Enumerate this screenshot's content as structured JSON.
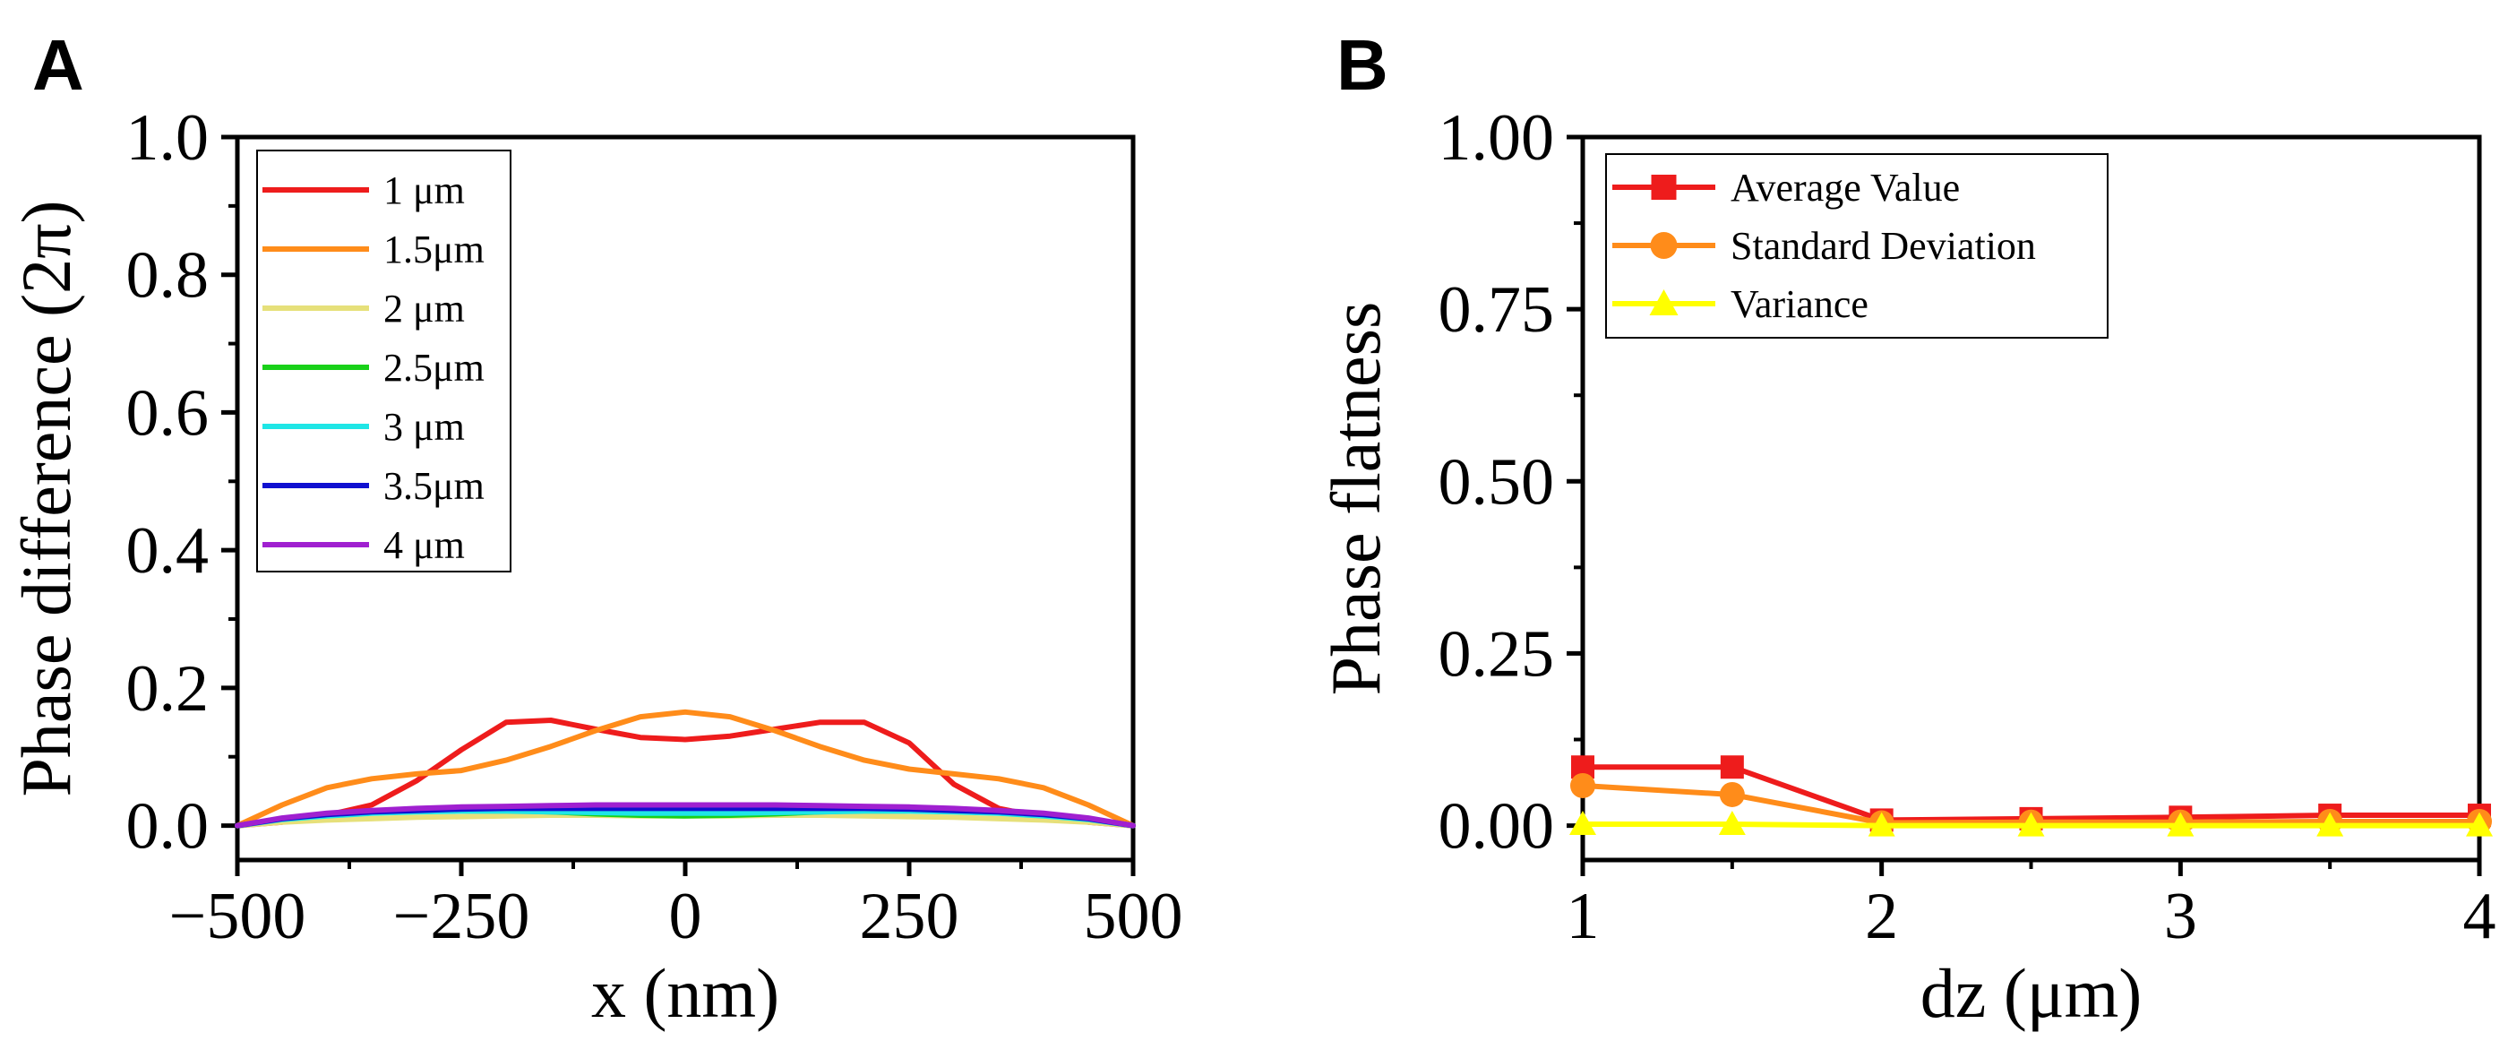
{
  "figure": {
    "panels": [
      {
        "letter": "A"
      },
      {
        "letter": "B"
      }
    ]
  },
  "chart_data": [
    {
      "type": "line",
      "panel": "A",
      "title": "",
      "xlabel": "x (nm)",
      "ylabel": "Phase difference (2π)",
      "xlim": [
        -500,
        500
      ],
      "ylim": [
        -0.05,
        1.0
      ],
      "xticks": [
        -500,
        -250,
        0,
        250,
        500
      ],
      "xtick_labels": [
        "−500",
        "−250",
        "0",
        "250",
        "500"
      ],
      "yticks": [
        0.0,
        0.2,
        0.4,
        0.6,
        0.8,
        1.0
      ],
      "ytick_labels": [
        "0.0",
        "0.2",
        "0.4",
        "0.6",
        "0.8",
        "1.0"
      ],
      "grid": false,
      "legend_position": "top-left",
      "x": [
        -500,
        -450,
        -400,
        -350,
        -300,
        -250,
        -200,
        -150,
        -100,
        -50,
        0,
        50,
        100,
        150,
        200,
        250,
        300,
        350,
        400,
        450,
        500
      ],
      "series": [
        {
          "name": "1   μm",
          "color": "#ee1c1c",
          "values": [
            0.0,
            0.005,
            0.015,
            0.03,
            0.065,
            0.11,
            0.15,
            0.153,
            0.14,
            0.128,
            0.125,
            0.13,
            0.14,
            0.15,
            0.15,
            0.12,
            0.06,
            0.025,
            0.012,
            0.005,
            0.0
          ]
        },
        {
          "name": "1.5μm",
          "color": "#ff8c1a",
          "values": [
            0.0,
            0.03,
            0.055,
            0.068,
            0.075,
            0.08,
            0.095,
            0.115,
            0.138,
            0.158,
            0.165,
            0.158,
            0.138,
            0.115,
            0.095,
            0.082,
            0.075,
            0.068,
            0.055,
            0.03,
            0.0
          ]
        },
        {
          "name": "2   μm",
          "color": "#e6e07a",
          "values": [
            0.0,
            0.005,
            0.008,
            0.01,
            0.012,
            0.013,
            0.014,
            0.015,
            0.015,
            0.014,
            0.014,
            0.014,
            0.015,
            0.015,
            0.014,
            0.013,
            0.012,
            0.01,
            0.008,
            0.005,
            0.0
          ]
        },
        {
          "name": "2.5μm",
          "color": "#19d119",
          "values": [
            0.0,
            0.01,
            0.016,
            0.02,
            0.022,
            0.023,
            0.022,
            0.02,
            0.017,
            0.015,
            0.014,
            0.015,
            0.017,
            0.02,
            0.022,
            0.023,
            0.022,
            0.02,
            0.016,
            0.01,
            0.0
          ]
        },
        {
          "name": "3   μm",
          "color": "#1fe6e6",
          "values": [
            0.0,
            0.009,
            0.014,
            0.018,
            0.02,
            0.021,
            0.021,
            0.02,
            0.019,
            0.018,
            0.018,
            0.018,
            0.019,
            0.02,
            0.021,
            0.021,
            0.02,
            0.018,
            0.014,
            0.009,
            0.0
          ]
        },
        {
          "name": "3.5μm",
          "color": "#1010d0",
          "values": [
            0.0,
            0.01,
            0.016,
            0.02,
            0.022,
            0.024,
            0.025,
            0.025,
            0.025,
            0.025,
            0.025,
            0.025,
            0.025,
            0.025,
            0.025,
            0.024,
            0.022,
            0.02,
            0.016,
            0.01,
            0.0
          ]
        },
        {
          "name": "4   μm",
          "color": "#a020d0",
          "values": [
            0.0,
            0.011,
            0.018,
            0.022,
            0.025,
            0.027,
            0.028,
            0.029,
            0.03,
            0.03,
            0.03,
            0.03,
            0.03,
            0.029,
            0.028,
            0.027,
            0.025,
            0.022,
            0.018,
            0.011,
            0.0
          ]
        }
      ]
    },
    {
      "type": "line",
      "panel": "B",
      "title": "",
      "xlabel": "dz (μm)",
      "ylabel": "Phase flatness",
      "xlim": [
        1,
        4
      ],
      "ylim": [
        -0.05,
        1.0
      ],
      "xticks": [
        1,
        2,
        3,
        4
      ],
      "xtick_labels": [
        "1",
        "2",
        "3",
        "4"
      ],
      "yticks": [
        0.0,
        0.25,
        0.5,
        0.75,
        1.0
      ],
      "ytick_labels": [
        "0.00",
        "0.25",
        "0.50",
        "0.75",
        "1.00"
      ],
      "grid": false,
      "legend_position": "top-left",
      "x": [
        1,
        1.5,
        2,
        2.5,
        3,
        3.5,
        4
      ],
      "series": [
        {
          "name": "Average Value",
          "color": "#ee1c1c",
          "marker": "square",
          "values": [
            0.085,
            0.085,
            0.008,
            0.01,
            0.012,
            0.015,
            0.015
          ]
        },
        {
          "name": "Standard Deviation",
          "color": "#ff8c1a",
          "marker": "circle",
          "values": [
            0.058,
            0.045,
            0.004,
            0.005,
            0.005,
            0.006,
            0.006
          ]
        },
        {
          "name": "Variance",
          "color": "#ffff00",
          "marker": "triangle",
          "values": [
            0.002,
            0.002,
            0.0,
            0.0,
            0.0,
            0.0,
            0.0
          ]
        }
      ]
    }
  ]
}
